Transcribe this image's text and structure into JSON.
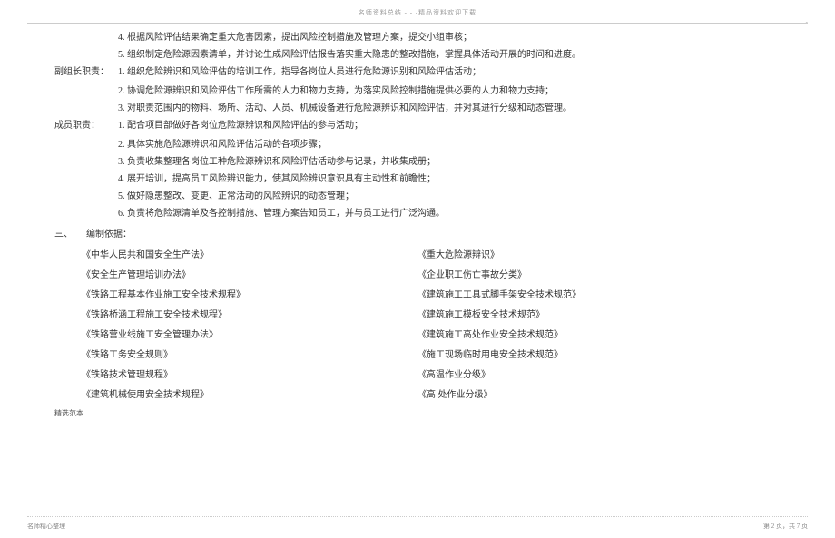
{
  "topHeader": "名师资料总结 - - -精品资料欢迎下载",
  "cornerDot": "-",
  "duties": {
    "leader": [
      "4. 根据风险评估结果确定重大危害因素，提出风险控制措施及管理方案，提交小组审核；",
      "5. 组织制定危险源因素清单，并讨论生成风险评估报告落实重大隐患的整改措施，掌握具体活动开展的时间和进度。"
    ],
    "viceLeaderLabel": "副组长职责：",
    "viceLeader": [
      "1. 组织危险辨识和风险评估的培训工作，指导各岗位人员进行危险源识别和风险评估活动；",
      "2. 协调危险源辨识和风险评估工作所需的人力和物力支持，为落实风险控制措施提供必要的人力和物力支持；",
      "3. 对职责范围内的物料、场所、活动、人员、机械设备进行危险源辨识和风险评估，并对其进行分级和动态管理。"
    ],
    "memberLabel": "成员职责：",
    "member": [
      "1. 配合项目部做好各岗位危险源辨识和风险评估的参与活动；",
      "2. 具体实施危险源辨识和风险评估活动的各项步骤；",
      "3. 负责收集整理各岗位工种危险源辨识和风险评估活动参与记录，并收集成册；",
      "4. 展开培训，提高员工风险辨识能力，使其风险辨识意识具有主动性和前瞻性；",
      "5. 做好隐患整改、变更、正常活动的风险辨识的动态管理；",
      "6. 负责将危险源清单及各控制措施、管理方案告知员工，并与员工进行广泛沟通。"
    ]
  },
  "sectionThree": "三、　　编制依据：",
  "refsLeft": [
    "《中华人民共和国安全生产法》",
    "《安全生产管理培训办法》",
    "《铁路工程基本作业施工安全技术规程》",
    "《铁路桥涵工程施工安全技术规程》",
    "《铁路营业线施工安全管理办法》",
    "《铁路工务安全规则》",
    "《铁路技术管理规程》",
    "《建筑机械使用安全技术规程》"
  ],
  "refsRight": [
    "《重大危险源辩识》",
    "《企业职工伤亡事故分类》",
    "《建筑施工工具式脚手架安全技术规范》",
    "《建筑施工模板安全技术规范》",
    "《建筑施工高处作业安全技术规范》",
    "《施工现场临时用电安全技术规范》",
    "《高温作业分级》",
    "《高 处作业分级》"
  ],
  "smallNote": "精选范本",
  "footerLeft": "名师精心整理",
  "footerRight": "第 2 页，共 7 页"
}
